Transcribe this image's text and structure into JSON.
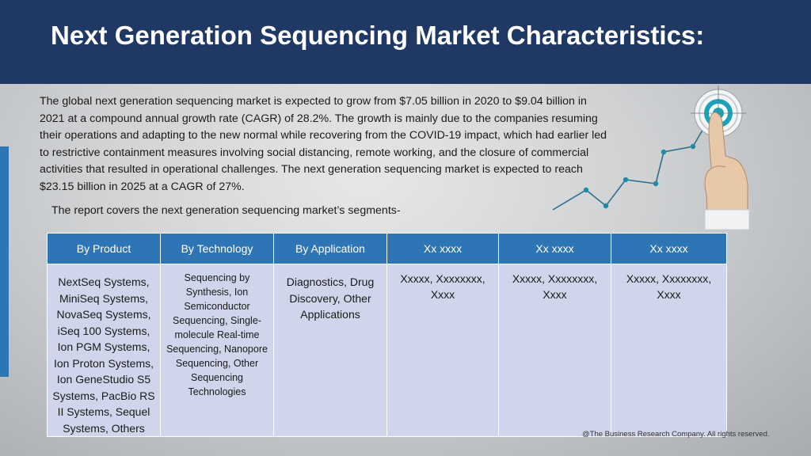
{
  "header": {
    "title": "Next Generation Sequencing Market Characteristics:"
  },
  "intro": {
    "paragraph": "The global next generation sequencing market is expected to grow from $7.05 billion in 2020 to $9.04 billion in 2021 at a compound annual growth rate (CAGR) of 28.2%. The growth is mainly due to the companies resuming their operations and adapting to the new normal while recovering from the COVID-19 impact, which had earlier led to restrictive containment measures involving social distancing, remote working, and the closure of commercial activities that resulted in operational challenges. The next generation sequencing market is expected to reach $23.15 billion in 2025 at a CAGR of 27%.",
    "segments_line": "The report covers the next generation sequencing market’s segments-"
  },
  "table": {
    "headers": [
      "By Product",
      "By Technology",
      "By Application",
      "Xx xxxx",
      "Xx xxxx",
      "Xx xxxx"
    ],
    "cells": [
      "NextSeq Systems, MiniSeq Systems, NovaSeq Systems, iSeq 100 Systems, Ion PGM Systems, Ion Proton Systems, Ion GeneStudio S5 Systems, PacBio RS II Systems, Sequel Systems, Others",
      "Sequencing by Synthesis, Ion Semiconductor Sequencing, Single-molecule Real-time Sequencing, Nanopore Sequencing, Other Sequencing Technologies",
      "Diagnostics, Drug Discovery, Other Applications",
      "Xxxxx, Xxxxxxxx, Xxxx",
      "Xxxxx, Xxxxxxxx, Xxxx",
      "Xxxxx, Xxxxxxxx, Xxxx"
    ]
  },
  "footer": {
    "copyright": "@The Business Research Company. All rights reserved."
  },
  "colors": {
    "header_bg": "#1f3864",
    "accent": "#2e75b6",
    "table_cell": "#cfd5ea",
    "target_ring": "#1aa3b8"
  },
  "icons": [
    "target-icon",
    "pointing-hand-icon",
    "growth-line-icon"
  ]
}
